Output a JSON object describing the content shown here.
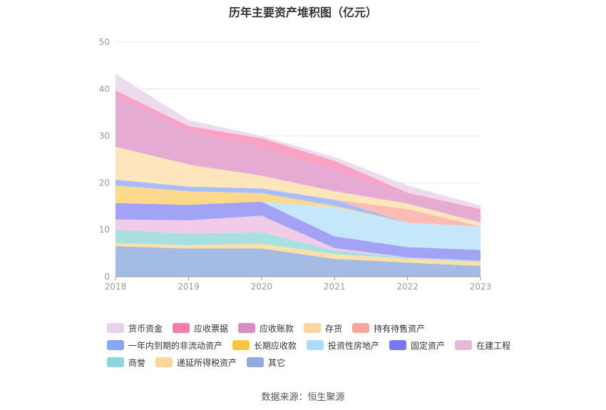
{
  "title": "历年主要资产堆积图（亿元）",
  "source": "数据来源：恒生聚源",
  "chart_data": {
    "type": "area",
    "stacked": true,
    "x": [
      "2018",
      "2019",
      "2020",
      "2021",
      "2022",
      "2023"
    ],
    "ylim": [
      0,
      50
    ],
    "yticks": [
      "0",
      "10",
      "20",
      "30",
      "40",
      "50"
    ],
    "grid": true,
    "legend_position": "bottom",
    "series": [
      {
        "name": "其它",
        "color": "#a4bbe3",
        "values": [
          6.5,
          6.0,
          6.0,
          3.8,
          3.0,
          2.3
        ]
      },
      {
        "name": "递延所得税资产",
        "color": "#fde0a8",
        "values": [
          0.7,
          0.7,
          1.0,
          1.0,
          0.8,
          0.8
        ]
      },
      {
        "name": "商誉",
        "color": "#a8e0e2",
        "values": [
          2.8,
          2.5,
          2.5,
          0.8,
          0.2,
          0.2
        ]
      },
      {
        "name": "在建工程",
        "color": "#f0cce6",
        "values": [
          2.2,
          2.8,
          3.5,
          0.5,
          0.1,
          0.1
        ]
      },
      {
        "name": "固定资产",
        "color": "#a3a3f5",
        "values": [
          3.5,
          3.3,
          3.0,
          2.5,
          2.2,
          2.3
        ]
      },
      {
        "name": "投资性房地产",
        "color": "#c4e7fb",
        "values": [
          0,
          0,
          0,
          6.2,
          5.2,
          5.0
        ]
      },
      {
        "name": "长期应收款",
        "color": "#fed98b",
        "values": [
          3.7,
          2.9,
          1.8,
          0.3,
          0,
          0
        ]
      },
      {
        "name": "一年内到期的非流动资产",
        "color": "#a6bef9",
        "values": [
          1.3,
          1.0,
          1.0,
          1.3,
          0,
          0
        ]
      },
      {
        "name": "持有待售资产",
        "color": "#fbbcb4",
        "values": [
          0,
          0,
          0,
          0,
          2.9,
          0
        ]
      },
      {
        "name": "存货",
        "color": "#fde5bc",
        "values": [
          7.0,
          4.7,
          2.7,
          1.8,
          1.2,
          0.8
        ]
      },
      {
        "name": "应收账款",
        "color": "#e5abd2",
        "values": [
          11.0,
          7.2,
          6.0,
          4.7,
          2.0,
          2.6
        ]
      },
      {
        "name": "应收票据",
        "color": "#f9a2c1",
        "values": [
          1.0,
          1.0,
          2.0,
          1.8,
          0.3,
          0.3
        ]
      },
      {
        "name": "货币资金",
        "color": "#ecdaee",
        "values": [
          3.5,
          1.3,
          0.5,
          0.8,
          1.5,
          0.8
        ]
      }
    ]
  },
  "legend": [
    [
      {
        "name": "货币资金",
        "color": "#e8d3ec"
      },
      {
        "name": "应收票据",
        "color": "#f57fac"
      },
      {
        "name": "应收账款",
        "color": "#d98ac3"
      },
      {
        "name": "存货",
        "color": "#fcd59c"
      },
      {
        "name": "持有待售资产",
        "color": "#f9a59b"
      }
    ],
    [
      {
        "name": "一年内到期的非流动资产",
        "color": "#88a6f6"
      },
      {
        "name": "长期应收款",
        "color": "#fdc440"
      },
      {
        "name": "投资性房地产",
        "color": "#a9ddf9"
      },
      {
        "name": "固定资产",
        "color": "#7878ef"
      },
      {
        "name": "在建工程",
        "color": "#e8b8db"
      }
    ],
    [
      {
        "name": "商誉",
        "color": "#8dd6d9"
      },
      {
        "name": "递延所得税资产",
        "color": "#fcd598"
      },
      {
        "name": "其它",
        "color": "#90aadc"
      }
    ]
  ]
}
